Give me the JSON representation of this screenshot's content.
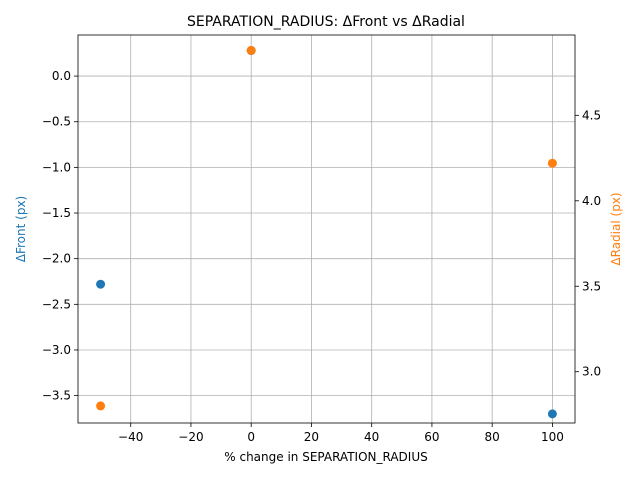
{
  "chart_data": {
    "type": "scatter",
    "title": "SEPARATION_RADIUS: ΔFront vs ΔRadial",
    "xlabel": "% change in SEPARATION_RADIUS",
    "ylabel_left": "ΔFront (px)",
    "ylabel_right": "ΔRadial (px)",
    "x": [
      -50,
      0,
      100
    ],
    "series": [
      {
        "axis": "left",
        "color": "#1f77b4",
        "values": [
          -2.28,
          0.28,
          -3.7
        ]
      },
      {
        "axis": "right",
        "color": "#ff7f0e",
        "values": [
          2.8,
          4.88,
          4.22
        ]
      }
    ],
    "xlim": [
      -57.5,
      107.5
    ],
    "ylim_left": [
      -3.8,
      0.45
    ],
    "ylim_right": [
      2.7,
      4.97
    ],
    "xticks": [
      -40,
      -20,
      0,
      20,
      40,
      60,
      80,
      100
    ],
    "xtick_labels": [
      "−40",
      "−20",
      "0",
      "20",
      "40",
      "60",
      "80",
      "100"
    ],
    "yticks_left": [
      -3.5,
      -3.0,
      -2.5,
      -2.0,
      -1.5,
      -1.0,
      -0.5,
      0.0
    ],
    "ytick_labels_left": [
      "−3.5",
      "−3.0",
      "−2.5",
      "−2.0",
      "−1.5",
      "−1.0",
      "−0.5",
      "0.0"
    ],
    "yticks_right": [
      3.0,
      3.5,
      4.0,
      4.5
    ],
    "ytick_labels_right": [
      "3.0",
      "3.5",
      "4.0",
      "4.5"
    ],
    "grid": true
  }
}
